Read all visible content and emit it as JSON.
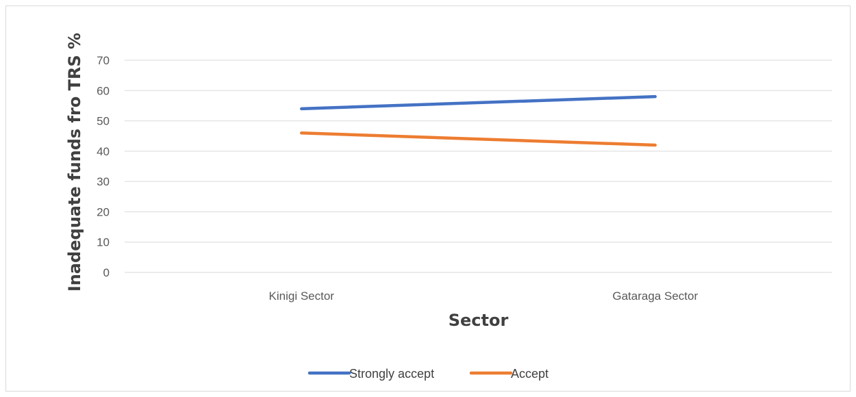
{
  "chart_data": {
    "type": "line",
    "title": "",
    "xlabel": "Sector",
    "ylabel": "Inadequate  funds fro  TRS %",
    "categories": [
      "Kinigi Sector",
      "Gataraga Sector"
    ],
    "ylim": [
      0,
      70
    ],
    "yticks": [
      0,
      10,
      20,
      30,
      40,
      50,
      60,
      70
    ],
    "grid": true,
    "legend_position": "bottom",
    "series": [
      {
        "name": "Strongly accept",
        "values": [
          54,
          58
        ],
        "color": "#4472C4"
      },
      {
        "name": "Accept",
        "values": [
          46,
          42
        ],
        "color": "#ED7D31"
      }
    ]
  }
}
